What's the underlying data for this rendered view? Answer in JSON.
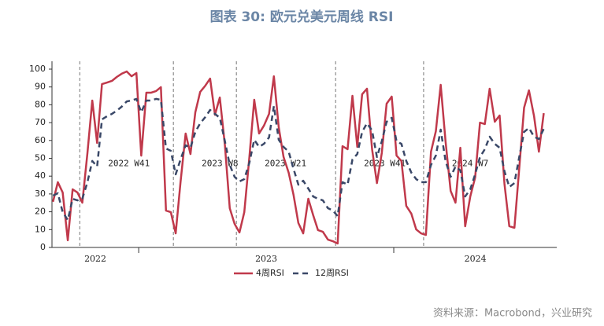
{
  "chart_data": {
    "type": "line",
    "title": "图表 30: 欧元兑美元周线 RSI",
    "source": "资料来源：Macrobond，兴业研究",
    "x": [
      2022.664,
      2022.683,
      2022.702,
      2022.722,
      2022.741,
      2022.76,
      2022.779,
      2022.799,
      2022.818,
      2022.837,
      2022.856,
      2022.876,
      2022.895,
      2022.914,
      2022.933,
      2022.953,
      2022.972,
      2022.991,
      2023.01,
      2023.03,
      2023.049,
      2023.068,
      2023.087,
      2023.107,
      2023.126,
      2023.145,
      2023.164,
      2023.184,
      2023.203,
      2023.222,
      2023.241,
      2023.261,
      2023.28,
      2023.299,
      2023.318,
      2023.338,
      2023.357,
      2023.376,
      2023.395,
      2023.414,
      2023.434,
      2023.453,
      2023.472,
      2023.491,
      2023.511,
      2023.53,
      2023.549,
      2023.568,
      2023.588,
      2023.607,
      2023.626,
      2023.645,
      2023.665,
      2023.684,
      2023.703,
      2023.722,
      2023.742,
      2023.761,
      2023.78,
      2023.799,
      2023.819,
      2023.838,
      2023.857,
      2023.876,
      2023.895,
      2023.915,
      2023.934,
      2023.953,
      2023.972,
      2023.992,
      2024.011,
      2024.03,
      2024.049,
      2024.069,
      2024.088,
      2024.107,
      2024.126,
      2024.146,
      2024.165,
      2024.184,
      2024.203,
      2024.223,
      2024.242,
      2024.261,
      2024.28,
      2024.3,
      2024.319,
      2024.338,
      2024.357,
      2024.376,
      2024.396,
      2024.415,
      2024.434,
      2024.453,
      2024.473,
      2024.492,
      2024.511,
      2024.53,
      2024.55,
      2024.569,
      2024.588
    ],
    "series": [
      {
        "name": "4周RSI",
        "color": "#c0394b",
        "dash": false,
        "values": [
          25.6,
          36.6,
          30.8,
          4.0,
          32.6,
          30.8,
          25.1,
          52.9,
          82.4,
          58.6,
          91.6,
          92.5,
          93.4,
          95.6,
          97.4,
          98.7,
          96.0,
          97.8,
          51.5,
          86.8,
          86.8,
          87.7,
          89.9,
          20.7,
          19.8,
          7.9,
          36.6,
          63.9,
          52.4,
          75.8,
          87.2,
          90.7,
          94.7,
          74.4,
          84.1,
          57.3,
          22.0,
          13.2,
          8.4,
          19.8,
          50.7,
          82.8,
          63.9,
          68.3,
          74.9,
          96.0,
          67.4,
          50.7,
          41.9,
          29.5,
          13.7,
          7.9,
          27.3,
          18.1,
          9.7,
          8.8,
          4.4,
          3.5,
          2.2,
          56.8,
          55.1,
          85.0,
          56.4,
          85.9,
          89.0,
          55.1,
          36.1,
          52.9,
          80.6,
          84.6,
          51.5,
          48.5,
          23.3,
          18.9,
          10.1,
          7.9,
          7.0,
          53.7,
          65.2,
          91.2,
          59.5,
          31.7,
          25.1,
          55.9,
          11.9,
          28.6,
          39.2,
          70.0,
          69.2,
          89.0,
          70.5,
          74.0,
          35.7,
          11.9,
          11.0,
          44.5,
          78.4,
          88.1,
          73.6,
          53.7,
          75.3
        ]
      },
      {
        "name": "12周RSI",
        "color": "#3a4868",
        "dash": true,
        "values": [
          29.1,
          30.4,
          19.8,
          15.4,
          27.3,
          26.4,
          27.3,
          36.6,
          48.5,
          45.4,
          71.8,
          73.6,
          74.9,
          76.7,
          78.9,
          81.9,
          82.4,
          83.3,
          75.8,
          82.4,
          82.4,
          83.3,
          82.8,
          55.5,
          54.2,
          41.0,
          49.3,
          57.3,
          55.9,
          64.8,
          69.6,
          73.1,
          77.1,
          74.9,
          72.7,
          59.5,
          46.3,
          39.6,
          37.0,
          38.3,
          47.6,
          60.4,
          56.4,
          58.1,
          61.7,
          79.3,
          60.4,
          56.4,
          53.7,
          44.1,
          35.2,
          37.4,
          33.0,
          28.6,
          27.3,
          26.4,
          22.0,
          20.7,
          17.6,
          36.6,
          35.2,
          49.3,
          52.4,
          64.8,
          69.6,
          65.6,
          50.7,
          59.5,
          70.5,
          72.7,
          59.5,
          58.1,
          48.5,
          41.9,
          38.3,
          36.6,
          36.6,
          46.3,
          51.5,
          66.1,
          48.5,
          39.6,
          45.4,
          43.2,
          28.6,
          32.6,
          41.0,
          50.7,
          55.1,
          62.1,
          58.1,
          55.9,
          42.7,
          33.9,
          36.1,
          50.7,
          64.8,
          67.0,
          62.1,
          60.8,
          66.5
        ]
      }
    ],
    "xlim": [
      2022.66,
      2024.639
    ],
    "xticks": [
      2023,
      2024
    ],
    "year_labels": [
      {
        "value": 2022.83,
        "label": "2022"
      },
      {
        "value": 2023.5,
        "label": "2023"
      },
      {
        "value": 2024.32,
        "label": "2024"
      }
    ],
    "ylim": [
      0,
      100
    ],
    "yticks": [
      0,
      10,
      20,
      30,
      40,
      50,
      60,
      70,
      80,
      90,
      100
    ],
    "annotations": [
      {
        "x": 2022.769,
        "label": "2022 W41"
      },
      {
        "x": 2023.136,
        "label": "2023 W8"
      },
      {
        "x": 2023.383,
        "label": "2023 W21"
      },
      {
        "x": 2023.772,
        "label": "2023 W41"
      },
      {
        "x": 2024.117,
        "label": "2024 W7"
      }
    ],
    "legend": "bottom"
  }
}
